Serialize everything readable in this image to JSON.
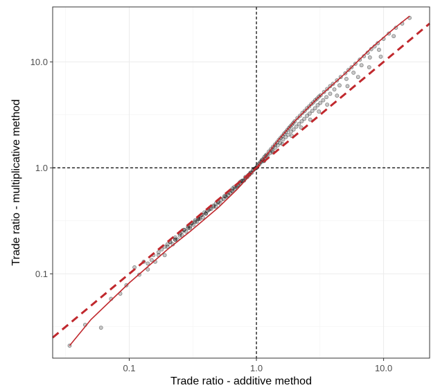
{
  "chart_data": {
    "type": "scatter",
    "title": "",
    "xlabel": "Trade ratio - additive method",
    "ylabel": "Trade ratio - multiplicative method",
    "x_scale": "log",
    "y_scale": "log",
    "xlim": [
      0.025,
      23
    ],
    "ylim": [
      0.016,
      33
    ],
    "x_ticks": [
      0.1,
      1.0,
      10.0
    ],
    "x_tick_labels": [
      "0.1",
      "1.0",
      "10.0"
    ],
    "y_ticks": [
      0.1,
      1.0,
      10.0
    ],
    "y_tick_labels": [
      "0.1",
      "1.0",
      "10.0"
    ],
    "grid": true,
    "legend": "none",
    "reference_lines": [
      {
        "orientation": "vertical",
        "value": 1.0,
        "style": "dashed",
        "color": "#000000"
      },
      {
        "orientation": "horizontal",
        "value": 1.0,
        "style": "dashed",
        "color": "#000000"
      }
    ],
    "identity_line": {
      "x": [
        0.025,
        23
      ],
      "y": [
        0.025,
        23
      ],
      "style": "dashed",
      "color": "#c0282d"
    },
    "fit_curve": {
      "color": "#c0282d",
      "x": [
        0.034,
        0.05,
        0.1,
        0.2,
        0.3,
        0.5,
        0.7,
        0.85,
        1.0,
        1.2,
        1.5,
        2.0,
        3.0,
        5.0,
        8.0,
        12.0,
        16.0
      ],
      "y": [
        0.021,
        0.037,
        0.082,
        0.17,
        0.25,
        0.42,
        0.62,
        0.8,
        1.0,
        1.32,
        1.85,
        2.75,
        4.5,
        7.8,
        13.5,
        20.5,
        27.0
      ]
    },
    "points": {
      "color": "#000000",
      "opacity": 0.25,
      "x": [
        0.034,
        0.045,
        0.06,
        0.072,
        0.085,
        0.095,
        0.11,
        0.12,
        0.13,
        0.14,
        0.15,
        0.155,
        0.16,
        0.17,
        0.18,
        0.19,
        0.2,
        0.21,
        0.22,
        0.23,
        0.24,
        0.25,
        0.26,
        0.27,
        0.28,
        0.29,
        0.3,
        0.31,
        0.32,
        0.33,
        0.34,
        0.35,
        0.36,
        0.37,
        0.38,
        0.39,
        0.4,
        0.42,
        0.44,
        0.46,
        0.48,
        0.5,
        0.52,
        0.55,
        0.58,
        0.6,
        0.62,
        0.65,
        0.68,
        0.7,
        0.72,
        0.75,
        0.78,
        0.8,
        0.82,
        0.85,
        0.88,
        0.9,
        0.92,
        0.95,
        0.98,
        1.0,
        1.02,
        1.05,
        1.08,
        1.1,
        1.12,
        1.15,
        1.18,
        1.2,
        1.25,
        1.3,
        1.35,
        1.4,
        1.45,
        1.5,
        1.55,
        1.6,
        1.65,
        1.7,
        1.75,
        1.8,
        1.85,
        1.9,
        1.95,
        2.0,
        2.1,
        2.2,
        2.3,
        2.4,
        2.5,
        2.6,
        2.7,
        2.8,
        2.9,
        3.0,
        3.1,
        3.2,
        3.4,
        3.6,
        3.8,
        4.0,
        4.3,
        4.6,
        5.0,
        5.3,
        5.6,
        6.0,
        6.5,
        7.0,
        7.5,
        8.0,
        8.5,
        9.0,
        10.0,
        11.0,
        12.5,
        14.0,
        16.0,
        0.14,
        0.17,
        0.19,
        0.21,
        0.23,
        0.25,
        0.27,
        0.29,
        0.31,
        0.33,
        0.35,
        0.37,
        0.4,
        0.43,
        0.46,
        0.5,
        0.53,
        0.57,
        0.6,
        0.64,
        0.67,
        0.71,
        0.74,
        0.78,
        0.82,
        0.86,
        0.9,
        0.94,
        0.97,
        1.01,
        1.06,
        1.11,
        1.16,
        1.22,
        1.28,
        1.34,
        1.4,
        1.47,
        1.54,
        1.62,
        1.7,
        1.78,
        1.87,
        1.96,
        2.06,
        2.16,
        2.27,
        2.38,
        2.5,
        2.62,
        2.75,
        2.89,
        3.03,
        3.18,
        3.35,
        3.55,
        3.8,
        4.1,
        4.5,
        5.1,
        5.8,
        6.7,
        7.8,
        9.2,
        12.0,
        0.2,
        0.23,
        0.26,
        0.3,
        0.35,
        0.41,
        0.48,
        0.56,
        0.65,
        0.76,
        0.88,
        1.0,
        1.15,
        1.35,
        1.6,
        1.9,
        2.25,
        2.65,
        3.1,
        3.6,
        4.3,
        5.2,
        6.3,
        7.7,
        9.5
      ],
      "y": [
        0.021,
        0.033,
        0.031,
        0.058,
        0.065,
        0.078,
        0.115,
        0.098,
        0.13,
        0.11,
        0.135,
        0.15,
        0.13,
        0.16,
        0.17,
        0.15,
        0.18,
        0.2,
        0.19,
        0.22,
        0.21,
        0.24,
        0.23,
        0.26,
        0.25,
        0.28,
        0.27,
        0.3,
        0.29,
        0.32,
        0.31,
        0.34,
        0.33,
        0.36,
        0.34,
        0.38,
        0.37,
        0.4,
        0.41,
        0.44,
        0.43,
        0.47,
        0.46,
        0.51,
        0.53,
        0.55,
        0.58,
        0.6,
        0.64,
        0.66,
        0.68,
        0.71,
        0.75,
        0.76,
        0.8,
        0.82,
        0.86,
        0.9,
        0.9,
        0.96,
        0.99,
        1.0,
        1.05,
        1.1,
        1.14,
        1.18,
        1.2,
        1.26,
        1.3,
        1.33,
        1.42,
        1.5,
        1.58,
        1.66,
        1.74,
        1.84,
        1.92,
        2.0,
        2.1,
        2.18,
        2.28,
        2.38,
        2.46,
        2.55,
        2.65,
        2.75,
        2.95,
        3.1,
        3.3,
        3.45,
        3.65,
        3.8,
        4.0,
        4.15,
        4.35,
        4.5,
        4.7,
        4.85,
        5.2,
        5.55,
        5.9,
        6.2,
        6.7,
        7.2,
        7.8,
        8.4,
        8.9,
        9.6,
        10.5,
        11.3,
        12.2,
        13.2,
        14.0,
        15.0,
        16.5,
        18.5,
        21.0,
        23.0,
        26.0,
        0.125,
        0.15,
        0.18,
        0.2,
        0.21,
        0.23,
        0.26,
        0.27,
        0.3,
        0.31,
        0.33,
        0.36,
        0.37,
        0.41,
        0.43,
        0.48,
        0.5,
        0.54,
        0.58,
        0.61,
        0.66,
        0.68,
        0.73,
        0.76,
        0.82,
        0.85,
        0.9,
        0.95,
        0.98,
        1.02,
        1.09,
        1.15,
        1.22,
        1.3,
        1.38,
        1.45,
        1.55,
        1.63,
        1.72,
        1.85,
        1.95,
        2.05,
        2.2,
        2.3,
        2.45,
        2.6,
        2.75,
        2.9,
        3.1,
        3.25,
        3.45,
        3.65,
        3.9,
        4.1,
        4.35,
        4.65,
        5.0,
        5.5,
        6.0,
        6.9,
        7.9,
        9.3,
        11.0,
        13.0,
        17.5,
        0.19,
        0.21,
        0.25,
        0.28,
        0.33,
        0.39,
        0.46,
        0.54,
        0.64,
        0.75,
        0.87,
        1.0,
        1.16,
        1.4,
        1.68,
        2.0,
        2.4,
        2.85,
        3.4,
        3.95,
        4.8,
        5.9,
        7.2,
        8.9,
        11.2
      ]
    }
  }
}
